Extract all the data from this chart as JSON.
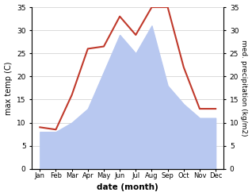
{
  "months": [
    "Jan",
    "Feb",
    "Mar",
    "Apr",
    "May",
    "Jun",
    "Jul",
    "Aug",
    "Sep",
    "Oct",
    "Nov",
    "Dec"
  ],
  "temperature": [
    9,
    8.5,
    16,
    26,
    26.5,
    33,
    29,
    35,
    35,
    22,
    13,
    13
  ],
  "precipitation": [
    8,
    8,
    10,
    13,
    21,
    29,
    25,
    31,
    18,
    14,
    11,
    11
  ],
  "temp_color": "#c0392b",
  "precip_fill_color": "#b8c8f0",
  "ylim": [
    0,
    35
  ],
  "yticks": [
    0,
    5,
    10,
    15,
    20,
    25,
    30,
    35
  ],
  "ylabel_left": "max temp (C)",
  "ylabel_right": "med. precipitation (kg/m2)",
  "xlabel": "date (month)",
  "bg_color": "#ffffff",
  "figsize": [
    3.18,
    2.47
  ],
  "dpi": 100
}
